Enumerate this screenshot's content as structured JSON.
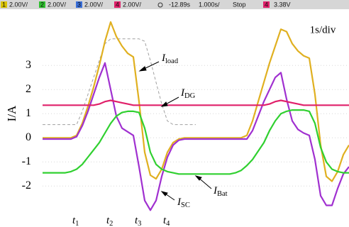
{
  "chart_data": {
    "type": "line",
    "status_bar": [
      {
        "text": "1",
        "box": "#d9c200"
      },
      {
        "text": "2.00V/"
      },
      {
        "text": "2",
        "box": "#2fbf2f"
      },
      {
        "text": "2.00V/"
      },
      {
        "text": "3",
        "box": "#3a6fd8"
      },
      {
        "text": "2.00V/"
      },
      {
        "text": "4",
        "box": "#e0206a"
      },
      {
        "text": "2.00V/"
      },
      {
        "text": "-12.89s"
      },
      {
        "text": "1.000s/"
      },
      {
        "text": "Stop"
      },
      {
        "text": "4",
        "box": "#e0206a"
      },
      {
        "text": "3.38V"
      }
    ],
    "scale_label": "1s/div",
    "y_label": "I/A",
    "ylim": [
      -3.05,
      5.3
    ],
    "yticks": [
      -2,
      -1,
      0,
      1,
      2,
      3
    ],
    "grid": true,
    "categories": [
      null,
      null,
      null,
      null,
      null,
      null,
      "t1",
      null,
      null,
      null,
      null,
      null,
      "t2",
      null,
      null,
      null,
      null,
      "t3",
      null,
      null,
      null,
      null,
      "t4",
      null,
      null,
      null,
      null,
      null,
      null,
      null,
      null,
      null,
      null,
      null,
      null,
      null,
      null,
      null,
      null,
      null,
      null,
      null,
      null,
      null,
      null,
      null,
      null,
      null,
      null,
      null,
      null,
      null,
      null,
      null,
      null
    ],
    "series": [
      {
        "color": "#a0a0a0",
        "dashed": true,
        "values": [
          0.55,
          0.55,
          0.55,
          0.55,
          0.55,
          0.55,
          0.55,
          1.1,
          1.8,
          2.5,
          3.2,
          3.9,
          4.1,
          4.1,
          4.1,
          4.1,
          4.1,
          4.1,
          4.0,
          3.2,
          2.3,
          1.4,
          0.7,
          0.55,
          0.55,
          0.55,
          0.55,
          0.55,
          null,
          null,
          null,
          null,
          null,
          null,
          null,
          null,
          null,
          null,
          null,
          null,
          null,
          null,
          null,
          null,
          null,
          null,
          null,
          null,
          null,
          null,
          null,
          null,
          null,
          null,
          null
        ]
      },
      {
        "color": "#e0b020",
        "values": [
          0,
          0,
          0,
          0,
          0,
          0,
          0.1,
          0.6,
          1.3,
          2.1,
          3.0,
          4.0,
          4.8,
          4.2,
          3.8,
          3.5,
          3.35,
          1.5,
          -0.6,
          -1.55,
          -1.7,
          -1.3,
          -0.6,
          -0.2,
          -0.05,
          0,
          0,
          0,
          0,
          0,
          0,
          0,
          0,
          0,
          0,
          0,
          0.1,
          0.7,
          1.5,
          2.3,
          3.1,
          3.8,
          4.5,
          4.4,
          3.9,
          3.6,
          3.4,
          3.3,
          1.8,
          -0.3,
          -1.6,
          -1.8,
          -1.4,
          -0.7,
          -0.3
        ]
      },
      {
        "color": "#a030d0",
        "values": [
          -0.05,
          -0.05,
          -0.05,
          -0.05,
          -0.05,
          -0.05,
          0.05,
          0.5,
          1.1,
          1.8,
          2.5,
          3.1,
          2.0,
          0.9,
          0.4,
          0.25,
          0.1,
          -1.2,
          -2.6,
          -3.0,
          -2.6,
          -1.6,
          -0.8,
          -0.3,
          -0.1,
          -0.05,
          -0.05,
          -0.05,
          -0.05,
          -0.05,
          -0.05,
          -0.05,
          -0.05,
          -0.05,
          -0.05,
          -0.05,
          -0.05,
          0.3,
          0.9,
          1.5,
          2.0,
          2.5,
          2.7,
          1.6,
          0.7,
          0.35,
          0.2,
          0.1,
          -0.9,
          -2.4,
          -2.8,
          -2.8,
          -2.1,
          -1.5,
          -1.2
        ]
      },
      {
        "color": "#30d030",
        "values": [
          -1.45,
          -1.45,
          -1.45,
          -1.45,
          -1.45,
          -1.4,
          -1.3,
          -1.1,
          -0.8,
          -0.5,
          -0.2,
          0.2,
          0.6,
          0.9,
          1.05,
          1.1,
          1.1,
          1.05,
          0.4,
          -0.6,
          -1.1,
          -1.3,
          -1.4,
          -1.45,
          -1.5,
          -1.5,
          -1.5,
          -1.5,
          -1.5,
          -1.5,
          -1.5,
          -1.5,
          -1.5,
          -1.5,
          -1.45,
          -1.35,
          -1.15,
          -0.9,
          -0.55,
          -0.2,
          0.3,
          0.7,
          1.0,
          1.1,
          1.15,
          1.15,
          1.15,
          1.1,
          0.6,
          -0.4,
          -1.0,
          -1.3,
          -1.4,
          -1.45,
          -1.45
        ]
      },
      {
        "color": "#e0206a",
        "values": [
          1.35,
          1.35,
          1.35,
          1.35,
          1.35,
          1.35,
          1.35,
          1.35,
          1.35,
          1.35,
          1.4,
          1.5,
          1.55,
          1.5,
          1.45,
          1.4,
          1.35,
          1.35,
          1.35,
          1.35,
          1.35,
          1.35,
          1.35,
          1.35,
          1.35,
          1.35,
          1.35,
          1.35,
          1.35,
          1.35,
          1.35,
          1.35,
          1.35,
          1.35,
          1.35,
          1.35,
          1.35,
          1.35,
          1.35,
          1.35,
          1.4,
          1.5,
          1.55,
          1.5,
          1.45,
          1.4,
          1.35,
          1.35,
          1.35,
          1.35,
          1.35,
          1.35,
          1.35,
          1.35,
          1.35
        ]
      }
    ],
    "annotations": [
      "Iload",
      "IDG",
      "ISC",
      "IBat"
    ]
  }
}
